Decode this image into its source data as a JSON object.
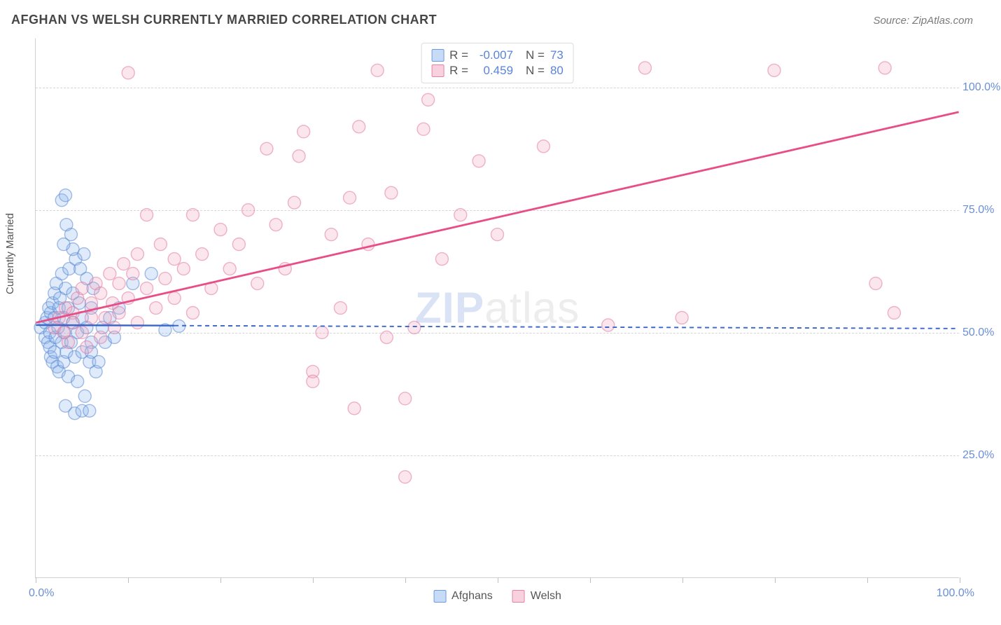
{
  "header": {
    "title": "AFGHAN VS WELSH CURRENTLY MARRIED CORRELATION CHART",
    "source": "Source: ZipAtlas.com"
  },
  "ylabel": "Currently Married",
  "watermark": {
    "left": "ZIP",
    "right": "atlas"
  },
  "chart": {
    "type": "scatter",
    "xlim": [
      0,
      100
    ],
    "ylim": [
      0,
      110
    ],
    "grid_color": "#d5d5d5",
    "background_color": "#ffffff",
    "yticks": [
      25,
      50,
      75,
      100
    ],
    "ytick_labels": [
      "25.0%",
      "50.0%",
      "75.0%",
      "100.0%"
    ],
    "ytick_color": "#6a8fd6",
    "xticks": [
      0,
      10,
      20,
      30,
      40,
      50,
      60,
      70,
      80,
      90,
      100
    ],
    "xorigin_label": "0.0%",
    "xmax_label": "100.0%",
    "marker_radius": 9,
    "marker_fill_opacity": 0.28,
    "marker_stroke_width": 1.4,
    "series": [
      {
        "key": "afghans",
        "label": "Afghans",
        "swatch_fill": "#c7dbf6",
        "swatch_stroke": "#6a9be0",
        "marker_fill": "#8bb4ee",
        "marker_stroke": "#5a89d2",
        "R": "-0.007",
        "N": "73",
        "trend": {
          "x1": 0,
          "y1": 51.5,
          "x2": 100,
          "y2": 50.8,
          "color": "#3a66c9",
          "width": 2.4,
          "dash": "6 5",
          "solid_until_x": 15
        },
        "points": [
          [
            0.5,
            51
          ],
          [
            1,
            52
          ],
          [
            1,
            49
          ],
          [
            1.2,
            53
          ],
          [
            1.3,
            48
          ],
          [
            1.4,
            55
          ],
          [
            1.5,
            50
          ],
          [
            1.5,
            47
          ],
          [
            1.6,
            45
          ],
          [
            1.6,
            54
          ],
          [
            1.8,
            56
          ],
          [
            1.8,
            44
          ],
          [
            2,
            53
          ],
          [
            2,
            46
          ],
          [
            2,
            58
          ],
          [
            2.1,
            49
          ],
          [
            2.2,
            60
          ],
          [
            2.3,
            43
          ],
          [
            2.4,
            51
          ],
          [
            2.5,
            55
          ],
          [
            2.5,
            42
          ],
          [
            2.6,
            57
          ],
          [
            2.8,
            48
          ],
          [
            2.8,
            62
          ],
          [
            3,
            53
          ],
          [
            3,
            44
          ],
          [
            3.1,
            50
          ],
          [
            3.2,
            59
          ],
          [
            3.3,
            46
          ],
          [
            3.5,
            55
          ],
          [
            3.5,
            41
          ],
          [
            3.6,
            63
          ],
          [
            3.8,
            48
          ],
          [
            4,
            52
          ],
          [
            4,
            58
          ],
          [
            4.2,
            45
          ],
          [
            4.3,
            65
          ],
          [
            4.5,
            50
          ],
          [
            4.5,
            40
          ],
          [
            4.7,
            56
          ],
          [
            5,
            46
          ],
          [
            5,
            53
          ],
          [
            5.2,
            66
          ],
          [
            5.3,
            37
          ],
          [
            5.5,
            51
          ],
          [
            5.8,
            44
          ],
          [
            6,
            55
          ],
          [
            6,
            48
          ],
          [
            6.2,
            59
          ],
          [
            6.5,
            42
          ],
          [
            2.8,
            77
          ],
          [
            3.2,
            78
          ],
          [
            4,
            67
          ],
          [
            3,
            68
          ],
          [
            3.2,
            35
          ],
          [
            4.2,
            33.5
          ],
          [
            5,
            34
          ],
          [
            5.8,
            34
          ],
          [
            6,
            46
          ],
          [
            6.8,
            44
          ],
          [
            3.3,
            72
          ],
          [
            3.8,
            70
          ],
          [
            4.8,
            63
          ],
          [
            5.5,
            61
          ],
          [
            7.2,
            51
          ],
          [
            7.5,
            48
          ],
          [
            8,
            53
          ],
          [
            8.5,
            49
          ],
          [
            9,
            55
          ],
          [
            10.5,
            60
          ],
          [
            12.5,
            62
          ],
          [
            14,
            50.5
          ],
          [
            15.5,
            51.3
          ]
        ]
      },
      {
        "key": "welsh",
        "label": "Welsh",
        "swatch_fill": "#f7d1de",
        "swatch_stroke": "#e87fa4",
        "marker_fill": "#f2a6c0",
        "marker_stroke": "#e278a0",
        "R": "0.459",
        "N": "80",
        "trend": {
          "x1": 0,
          "y1": 52,
          "x2": 100,
          "y2": 95,
          "color": "#e84d86",
          "width": 2.8,
          "dash": "",
          "solid_until_x": 100
        },
        "points": [
          [
            2,
            51
          ],
          [
            2.5,
            53
          ],
          [
            3,
            50
          ],
          [
            3.2,
            55
          ],
          [
            3.5,
            48
          ],
          [
            4,
            54
          ],
          [
            4,
            52
          ],
          [
            4.5,
            57
          ],
          [
            5,
            50
          ],
          [
            5,
            59
          ],
          [
            5.5,
            47
          ],
          [
            6,
            56
          ],
          [
            6,
            53
          ],
          [
            6.5,
            60
          ],
          [
            7,
            49
          ],
          [
            7,
            58
          ],
          [
            7.5,
            53
          ],
          [
            8,
            62
          ],
          [
            8.3,
            56
          ],
          [
            8.5,
            51
          ],
          [
            9,
            60
          ],
          [
            9,
            54
          ],
          [
            9.5,
            64
          ],
          [
            10,
            57
          ],
          [
            10,
            103
          ],
          [
            10.5,
            62
          ],
          [
            11,
            52
          ],
          [
            11,
            66
          ],
          [
            12,
            59
          ],
          [
            12,
            74
          ],
          [
            13,
            55
          ],
          [
            13.5,
            68
          ],
          [
            14,
            61
          ],
          [
            15,
            65
          ],
          [
            15,
            57
          ],
          [
            16,
            63
          ],
          [
            17,
            54
          ],
          [
            17,
            74
          ],
          [
            18,
            66
          ],
          [
            19,
            59
          ],
          [
            20,
            71
          ],
          [
            21,
            63
          ],
          [
            22,
            68
          ],
          [
            23,
            75
          ],
          [
            24,
            60
          ],
          [
            25,
            87.5
          ],
          [
            26,
            72
          ],
          [
            27,
            63
          ],
          [
            28,
            76.5
          ],
          [
            28.5,
            86
          ],
          [
            29,
            91
          ],
          [
            30,
            42
          ],
          [
            30,
            40
          ],
          [
            31,
            50
          ],
          [
            32,
            70
          ],
          [
            33,
            55
          ],
          [
            34,
            77.5
          ],
          [
            34.5,
            34.5
          ],
          [
            35,
            92
          ],
          [
            36,
            68
          ],
          [
            37,
            103.5
          ],
          [
            38,
            49
          ],
          [
            38.5,
            78.5
          ],
          [
            40,
            20.5
          ],
          [
            40,
            36.5
          ],
          [
            41,
            51
          ],
          [
            42,
            91.5
          ],
          [
            42.5,
            97.5
          ],
          [
            44,
            65
          ],
          [
            46,
            74
          ],
          [
            48,
            85
          ],
          [
            50,
            70
          ],
          [
            55,
            88
          ],
          [
            62,
            51.5
          ],
          [
            66,
            104
          ],
          [
            70,
            53
          ],
          [
            80,
            103.5
          ],
          [
            91,
            60
          ],
          [
            92,
            104
          ],
          [
            93,
            54
          ]
        ]
      }
    ]
  },
  "legend_bottom": [
    {
      "label": "Afghans",
      "fill": "#c7dbf6",
      "stroke": "#6a9be0"
    },
    {
      "label": "Welsh",
      "fill": "#f7d1de",
      "stroke": "#e87fa4"
    }
  ]
}
